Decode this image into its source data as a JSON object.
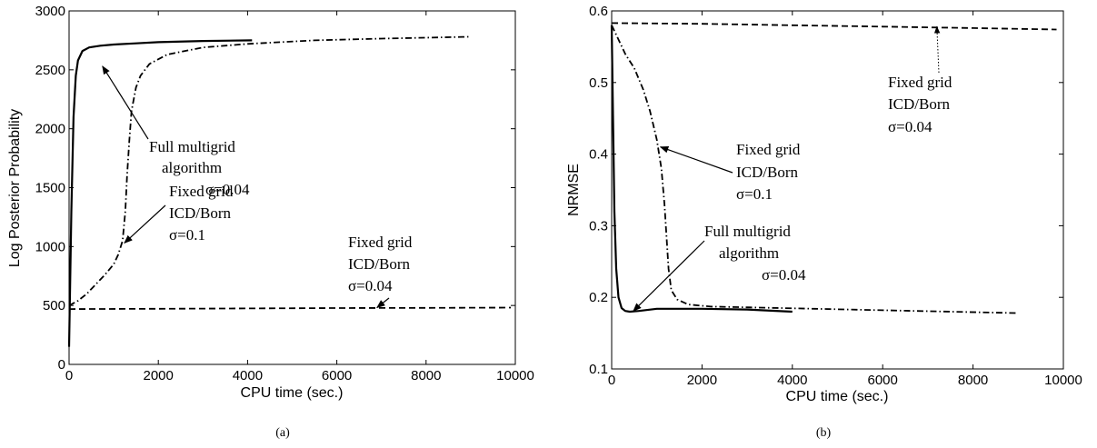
{
  "chart_data": [
    {
      "type": "line",
      "caption": "(a)",
      "xlabel": "CPU time (sec.)",
      "ylabel": "Log Posterior Probability",
      "xlim": [
        0,
        10000
      ],
      "ylim": [
        0,
        3000
      ],
      "xticks": [
        0,
        2000,
        4000,
        6000,
        8000,
        10000
      ],
      "yticks": [
        0,
        500,
        1000,
        1500,
        2000,
        2500,
        3000
      ],
      "grid": false,
      "series": [
        {
          "style": "solid",
          "points": [
            [
              0,
              150
            ],
            [
              20,
              600
            ],
            [
              50,
              1300
            ],
            [
              100,
              2100
            ],
            [
              150,
              2450
            ],
            [
              200,
              2580
            ],
            [
              300,
              2660
            ],
            [
              450,
              2690
            ],
            [
              700,
              2705
            ],
            [
              1000,
              2715
            ],
            [
              1500,
              2725
            ],
            [
              2000,
              2735
            ],
            [
              3000,
              2745
            ],
            [
              4100,
              2750
            ]
          ]
        },
        {
          "style": "dashdot",
          "points": [
            [
              0,
              500
            ],
            [
              200,
              540
            ],
            [
              400,
              600
            ],
            [
              600,
              680
            ],
            [
              800,
              760
            ],
            [
              1000,
              850
            ],
            [
              1100,
              930
            ],
            [
              1200,
              1050
            ],
            [
              1260,
              1300
            ],
            [
              1300,
              1600
            ],
            [
              1350,
              1900
            ],
            [
              1400,
              2150
            ],
            [
              1500,
              2350
            ],
            [
              1600,
              2450
            ],
            [
              1800,
              2550
            ],
            [
              2200,
              2630
            ],
            [
              3000,
              2690
            ],
            [
              4000,
              2720
            ],
            [
              5500,
              2750
            ],
            [
              7000,
              2765
            ],
            [
              8950,
              2780
            ]
          ]
        },
        {
          "style": "dashed",
          "points": [
            [
              0,
              470
            ],
            [
              2000,
              472
            ],
            [
              4000,
              475
            ],
            [
              6000,
              478
            ],
            [
              8000,
              480
            ],
            [
              9900,
              482
            ]
          ]
        }
      ],
      "annotations": [
        {
          "lines": [
            "Full multigrid",
            "algorithm",
            "σ=0.04"
          ],
          "arrow_to": [
            750,
            2530
          ]
        },
        {
          "lines": [
            "Fixed grid",
            "ICD/Born",
            "σ=0.1"
          ],
          "arrow_to": [
            1240,
            1030
          ]
        },
        {
          "lines": [
            "Fixed grid",
            "ICD/Born",
            "σ=0.04"
          ],
          "arrow_to": [
            6900,
            482
          ]
        }
      ]
    },
    {
      "type": "line",
      "caption": "(b)",
      "xlabel": "CPU time (sec.)",
      "ylabel": "NRMSE",
      "xlim": [
        0,
        10000
      ],
      "ylim": [
        0.1,
        0.6
      ],
      "xticks": [
        0,
        2000,
        4000,
        6000,
        8000,
        10000
      ],
      "yticks": [
        0.1,
        0.2,
        0.3,
        0.4,
        0.5,
        0.6
      ],
      "grid": false,
      "series": [
        {
          "style": "solid",
          "points": [
            [
              0,
              0.58
            ],
            [
              30,
              0.45
            ],
            [
              60,
              0.32
            ],
            [
              100,
              0.24
            ],
            [
              150,
              0.2
            ],
            [
              220,
              0.185
            ],
            [
              300,
              0.181
            ],
            [
              400,
              0.18
            ],
            [
              600,
              0.181
            ],
            [
              1000,
              0.184
            ],
            [
              2000,
              0.184
            ],
            [
              3000,
              0.183
            ],
            [
              4000,
              0.18
            ]
          ]
        },
        {
          "style": "dashdot",
          "points": [
            [
              0,
              0.58
            ],
            [
              150,
              0.56
            ],
            [
              300,
              0.54
            ],
            [
              500,
              0.52
            ],
            [
              700,
              0.49
            ],
            [
              850,
              0.46
            ],
            [
              1000,
              0.42
            ],
            [
              1100,
              0.38
            ],
            [
              1170,
              0.33
            ],
            [
              1220,
              0.28
            ],
            [
              1260,
              0.24
            ],
            [
              1320,
              0.21
            ],
            [
              1450,
              0.197
            ],
            [
              1700,
              0.19
            ],
            [
              2200,
              0.187
            ],
            [
              3000,
              0.186
            ],
            [
              4500,
              0.184
            ],
            [
              6000,
              0.182
            ],
            [
              8950,
              0.178
            ]
          ]
        },
        {
          "style": "dashed",
          "points": [
            [
              0,
              0.583
            ],
            [
              2000,
              0.582
            ],
            [
              4000,
              0.58
            ],
            [
              6000,
              0.578
            ],
            [
              8000,
              0.576
            ],
            [
              9850,
              0.574
            ]
          ]
        }
      ],
      "annotations": [
        {
          "lines": [
            "Fixed grid",
            "ICD/Born",
            "σ=0.04"
          ],
          "arrow_to": [
            7200,
            0.578
          ]
        },
        {
          "lines": [
            "Fixed grid",
            "ICD/Born",
            "σ=0.1"
          ],
          "arrow_to": [
            1080,
            0.41
          ]
        },
        {
          "lines": [
            "Full multigrid",
            "algorithm",
            "σ=0.04"
          ],
          "arrow_to": [
            480,
            0.181
          ]
        }
      ]
    }
  ]
}
